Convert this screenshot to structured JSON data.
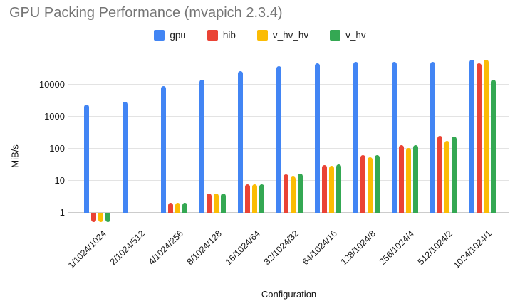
{
  "chart_data": {
    "type": "bar",
    "title": "GPU Packing Performance (mvapich 2.3.4)",
    "xlabel": "Configuration",
    "ylabel": "MiB/s",
    "y_scale": "log",
    "y_ticks": [
      1,
      10,
      100,
      1000,
      10000
    ],
    "ylim": [
      0.5,
      85000
    ],
    "grid": true,
    "legend_position": "top",
    "categories": [
      "1/1024/1024",
      "2/1024/512",
      "4/1024/256",
      "8/1024/128",
      "16/1024/64",
      "32/1024/32",
      "64/1024/16",
      "128/1024/8",
      "256/1024/4",
      "512/1024/2",
      "1024/1024/1"
    ],
    "series": [
      {
        "name": "gpu",
        "color": "#4285F4",
        "values": [
          2250,
          2800,
          8500,
          13000,
          24000,
          36000,
          43000,
          47000,
          48000,
          47000,
          55000
        ]
      },
      {
        "name": "hib",
        "color": "#EA4335",
        "values": [
          0.5,
          1,
          1.9,
          3.7,
          7.2,
          15,
          29,
          58,
          124,
          236,
          44000
        ]
      },
      {
        "name": "v_hv_hv",
        "color": "#FBBC04",
        "values": [
          0.5,
          1,
          1.9,
          3.7,
          7.2,
          13,
          28,
          51,
          100,
          166,
          57000
        ]
      },
      {
        "name": "v_hv",
        "color": "#34A853",
        "values": [
          0.5,
          1,
          1.9,
          3.8,
          7.5,
          15.5,
          31,
          60,
          122,
          229,
          13500
        ]
      }
    ]
  },
  "colors": {
    "title": "#757575",
    "gridline": "#e3e3e3",
    "baseline": "#cccccc",
    "axis_text": "#1a1a1a",
    "background": "#ffffff"
  }
}
